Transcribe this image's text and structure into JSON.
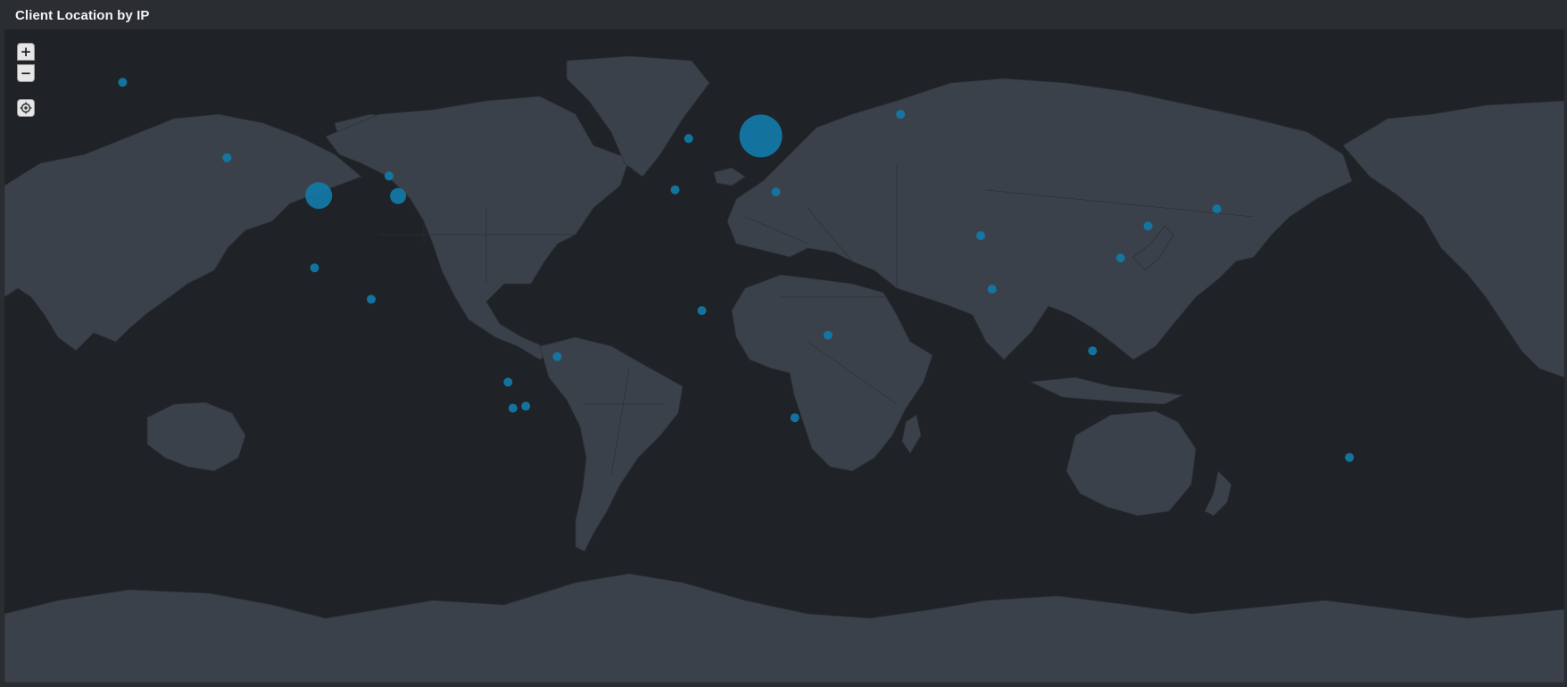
{
  "panel": {
    "title": "Client Location by IP"
  },
  "controls": {
    "zoom_in_icon": "plus-icon",
    "zoom_out_icon": "minus-icon",
    "locate_icon": "crosshair-icon",
    "zoom_in_glyph": "+",
    "zoom_out_glyph": "−"
  },
  "colors": {
    "panel_background": "#2a2d32",
    "water": "#1f2226",
    "land": "#3b414a",
    "marker": "#127aa8",
    "title_text": "#f2f2f2"
  },
  "markers": [
    {
      "lat": 61.2,
      "lon": -149.9,
      "size": "small"
    },
    {
      "lat": 47.6,
      "lon": -122.3,
      "size": "small"
    },
    {
      "lat": 39.0,
      "lon": -98.0,
      "size": "large"
    },
    {
      "lat": 38.9,
      "lon": -77.0,
      "size": "medium"
    },
    {
      "lat": 43.6,
      "lon": -79.4,
      "size": "small"
    },
    {
      "lat": 19.4,
      "lon": -99.1,
      "size": "small"
    },
    {
      "lat": 9.9,
      "lon": -84.1,
      "size": "small"
    },
    {
      "lat": 51.5,
      "lon": -0.1,
      "size": "small"
    },
    {
      "lat": 40.4,
      "lon": -3.7,
      "size": "small"
    },
    {
      "lat": 52.0,
      "lon": 19.0,
      "size": "xlarge"
    },
    {
      "lat": 39.9,
      "lon": 23.0,
      "size": "small"
    },
    {
      "lat": 56.0,
      "lon": 56.0,
      "size": "small"
    },
    {
      "lat": 6.4,
      "lon": 3.4,
      "size": "small"
    },
    {
      "lat": -1.3,
      "lon": 36.8,
      "size": "small"
    },
    {
      "lat": -26.2,
      "lon": 28.0,
      "size": "small"
    },
    {
      "lat": 28.6,
      "lon": 77.2,
      "size": "small"
    },
    {
      "lat": 13.0,
      "lon": 80.2,
      "size": "small"
    },
    {
      "lat": 31.2,
      "lon": 121.5,
      "size": "small"
    },
    {
      "lat": 22.3,
      "lon": 114.2,
      "size": "small"
    },
    {
      "lat": 35.7,
      "lon": 139.7,
      "size": "small"
    },
    {
      "lat": -6.2,
      "lon": 106.8,
      "size": "small"
    },
    {
      "lat": -36.8,
      "lon": 174.8,
      "size": "small"
    },
    {
      "lat": -8.0,
      "lon": -34.9,
      "size": "small"
    },
    {
      "lat": -15.8,
      "lon": -47.9,
      "size": "small"
    },
    {
      "lat": -22.9,
      "lon": -43.2,
      "size": "small"
    },
    {
      "lat": -23.5,
      "lon": -46.6,
      "size": "small"
    }
  ]
}
